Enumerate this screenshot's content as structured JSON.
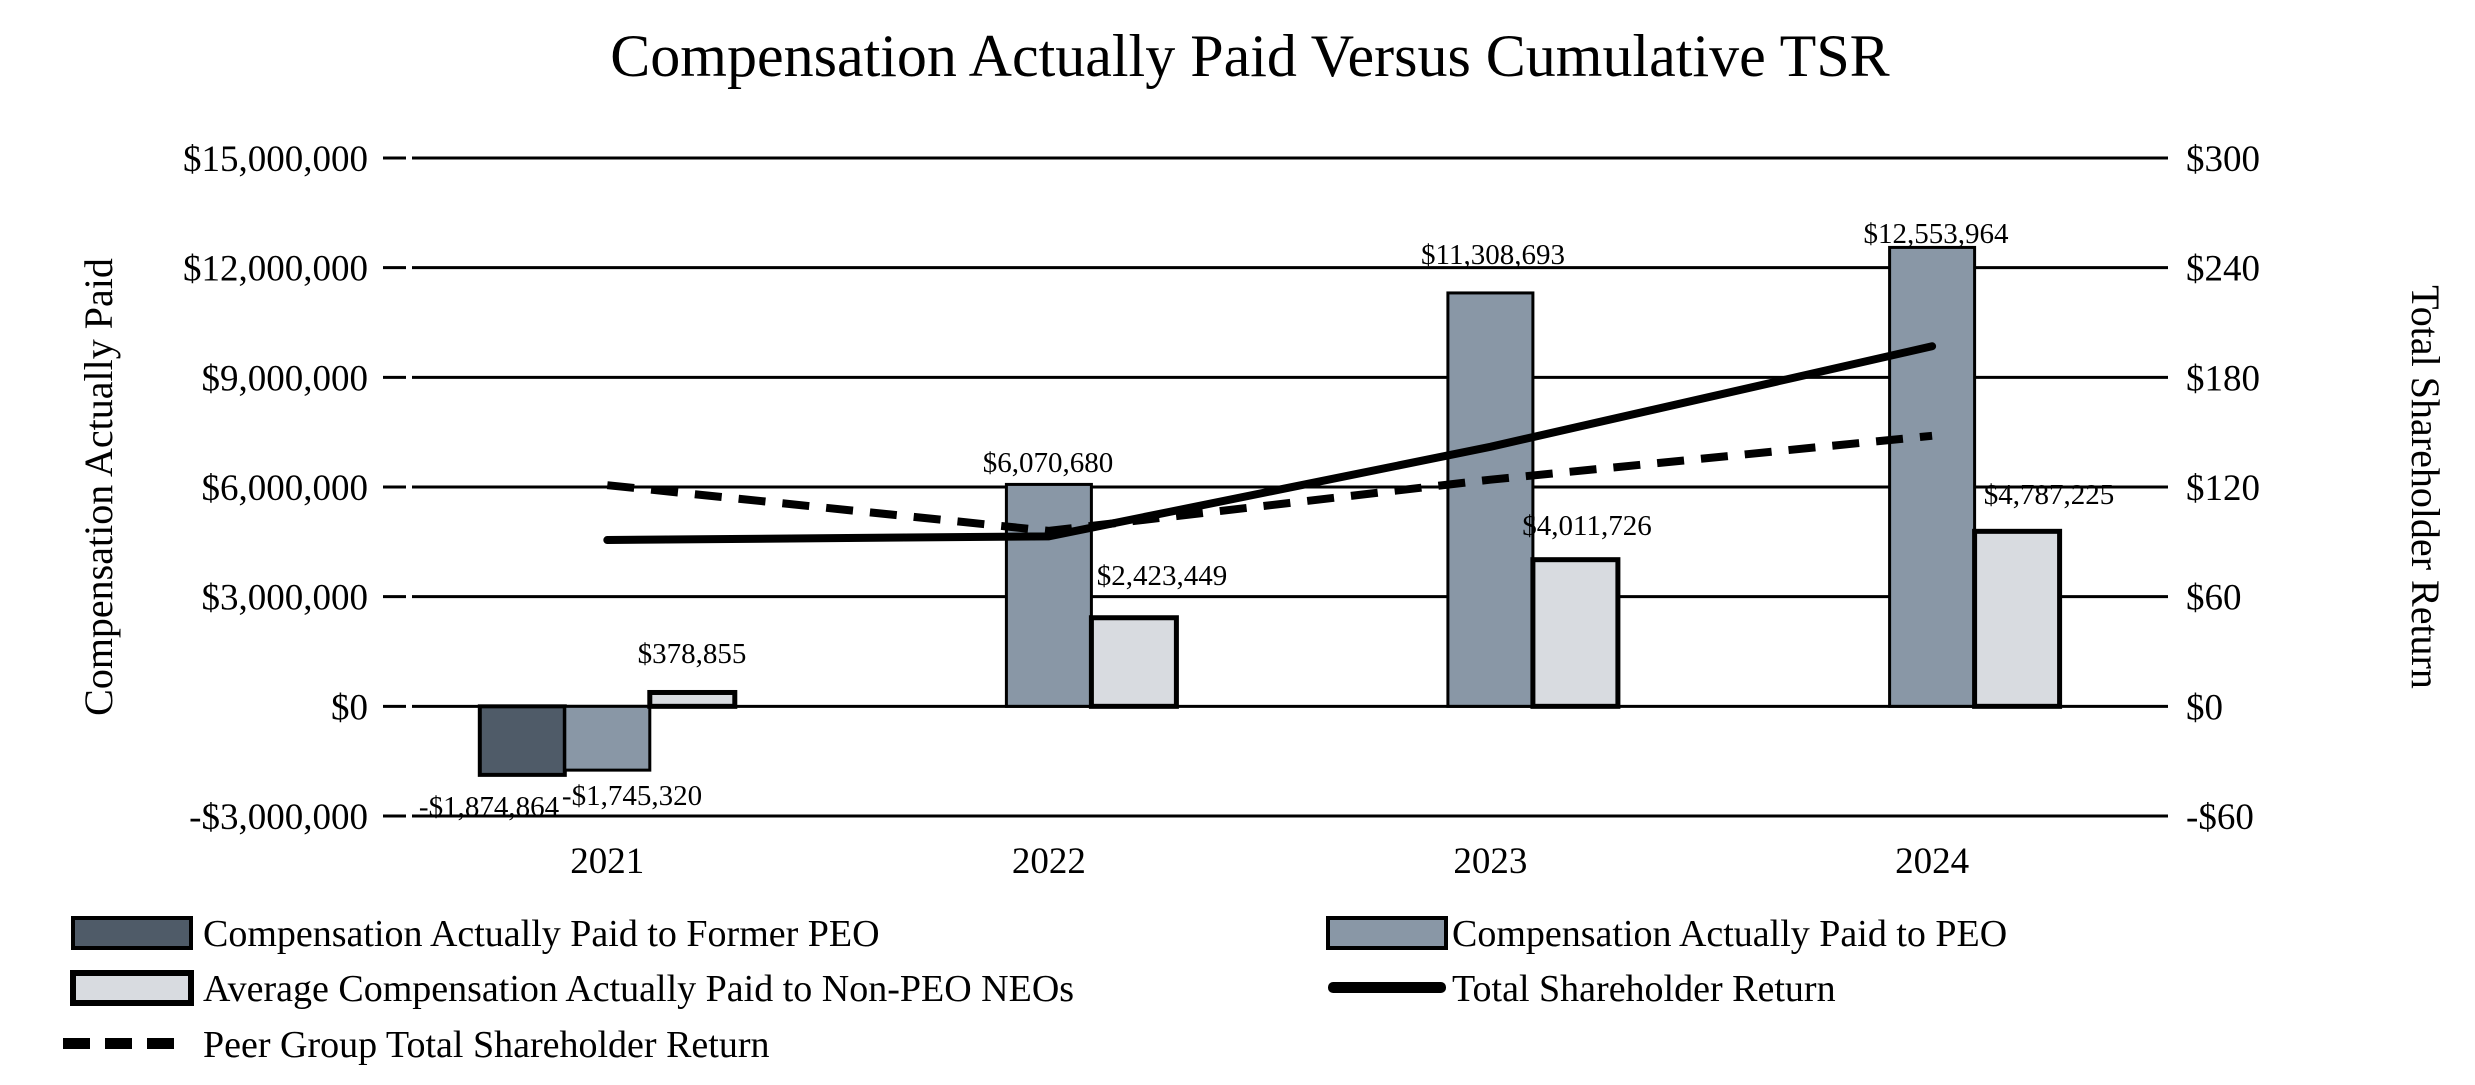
{
  "title": "Compensation Actually Paid Versus Cumulative TSR",
  "left_axis": {
    "title": "Compensation Actually Paid",
    "ticks": [
      "$15,000,000",
      "$12,000,000",
      "$9,000,000",
      "$6,000,000",
      "$3,000,000",
      "$0",
      "-$3,000,000"
    ],
    "range": [
      -3000000,
      15000000
    ]
  },
  "right_axis": {
    "title": "Total Shareholder Return",
    "ticks": [
      "$300",
      "$240",
      "$180",
      "$120",
      "$60",
      "$0",
      "-$60"
    ],
    "range": [
      -60,
      300
    ]
  },
  "colors": {
    "former_peo_bar": "#4f5b68",
    "peo_bar": "#8997a6",
    "neo_bar": "#d8dbe0",
    "line": "#000000",
    "grid": "#000000",
    "background": "#ffffff"
  },
  "chart_data": {
    "type": "bar",
    "subtype": "combo-bar-line-dual-axis",
    "categories": [
      "2021",
      "2022",
      "2023",
      "2024"
    ],
    "grid": "horizontal-on",
    "legend_position": "bottom",
    "series": [
      {
        "name": "Compensation Actually Paid to Former PEO",
        "type": "bar",
        "axis": "left",
        "slot": 0,
        "values": [
          -1874864,
          null,
          null,
          null
        ],
        "labels": [
          "-$1,874,864",
          null,
          null,
          null
        ]
      },
      {
        "name": "Compensation Actually Paid to PEO",
        "type": "bar",
        "axis": "left",
        "slot": 1,
        "values": [
          -1745320,
          6070680,
          11308693,
          12553964
        ],
        "labels": [
          "-$1,745,320",
          "$6,070,680",
          "$11,308,693",
          "$12,553,964"
        ]
      },
      {
        "name": "Average Compensation Actually Paid to Non-PEO NEOs",
        "type": "bar",
        "axis": "left",
        "slot": 2,
        "values": [
          378855,
          2423449,
          4011726,
          4787225
        ],
        "labels": [
          "$378,855",
          "$2,423,449",
          "$4,011,726",
          "$4,787,225"
        ]
      },
      {
        "name": "Total Shareholder Return",
        "type": "line",
        "style": "solid",
        "axis": "right",
        "values": [
          91,
          93,
          142,
          197
        ]
      },
      {
        "name": "Peer Group Total Shareholder Return",
        "type": "line",
        "style": "dashed",
        "axis": "right",
        "values": [
          121,
          96,
          124,
          148
        ]
      }
    ],
    "xlabel": "",
    "ylabel_left": "Compensation Actually Paid",
    "ylabel_right": "Total Shareholder Return",
    "ylim_left": [
      -3000000,
      15000000
    ],
    "ylim_right": [
      -60,
      300
    ]
  },
  "legend": {
    "columns": [
      [
        {
          "label": "Compensation Actually Paid to Former PEO",
          "swatch": "bar-former-peo"
        },
        {
          "label": "Average Compensation Actually Paid to Non-PEO NEOs",
          "swatch": "bar-neo"
        },
        {
          "label": "Peer Group Total Shareholder Return",
          "swatch": "dashed-line"
        }
      ],
      [
        {
          "label": "Compensation Actually Paid to PEO",
          "swatch": "bar-peo"
        },
        {
          "label": "Total Shareholder Return",
          "swatch": "solid-line"
        }
      ]
    ]
  }
}
